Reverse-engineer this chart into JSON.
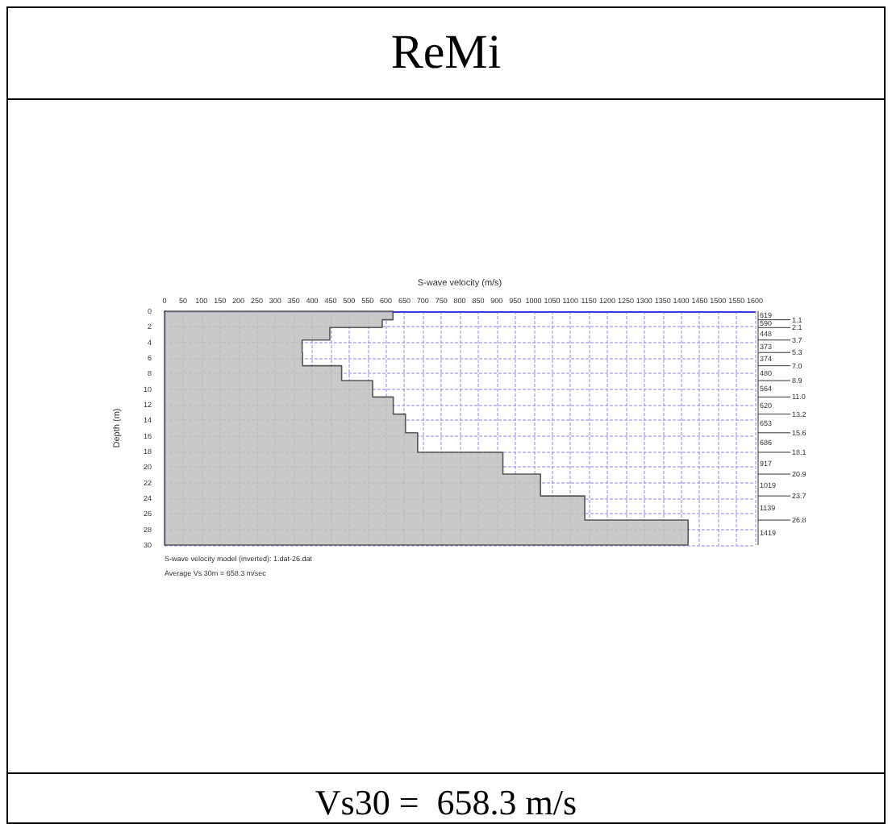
{
  "chart_data": {
    "type": "area",
    "orientation": "horizontal",
    "title": "ReMi",
    "xlabel": "S-wave velocity (m/s)",
    "ylabel": "Depth (m)",
    "x": [
      0,
      1.1,
      1.1,
      2.1,
      2.1,
      3.7,
      3.7,
      5.3,
      5.3,
      7.0,
      7.0,
      8.9,
      8.9,
      11.0,
      11.0,
      13.2,
      13.2,
      15.6,
      15.6,
      18.1,
      18.1,
      20.9,
      20.9,
      23.7,
      23.7,
      26.8,
      26.8,
      30
    ],
    "series": [
      {
        "color": "#c0c0c0",
        "values": [
          619,
          619,
          590,
          590,
          448,
          448,
          373,
          373,
          374,
          374,
          480,
          480,
          564,
          564,
          620,
          620,
          653,
          653,
          686,
          686,
          917,
          917,
          1019,
          1019,
          1139,
          1139,
          1419,
          1419
        ],
        "name": null
      }
    ],
    "xlim": [
      0,
      1600
    ],
    "xticks": [
      0,
      50,
      100,
      150,
      200,
      250,
      300,
      350,
      400,
      450,
      500,
      550,
      600,
      650,
      700,
      750,
      800,
      850,
      900,
      950,
      1000,
      1050,
      1100,
      1150,
      1200,
      1250,
      1300,
      1350,
      1400,
      1450,
      1500,
      1550,
      1600
    ],
    "ylim": [
      30,
      0
    ],
    "yticks": [
      0,
      2,
      4,
      6,
      8,
      10,
      12,
      14,
      16,
      18,
      20,
      22,
      24,
      26,
      28,
      30
    ],
    "grid": true,
    "annotations": [
      "S-wave velocity model (inverted): 1.dat-26.dat",
      "Average Vs 30m = 658.3 m/sec",
      "Vs30 =  658.3 m/s",
      "619",
      "590",
      "448",
      "373",
      "374",
      "480",
      "564",
      "620",
      "653",
      "686",
      "917",
      "1019",
      "1139",
      "1419",
      "1.1",
      "2.1",
      "3.7",
      "5.3",
      "7.0",
      "8.9",
      "11.0",
      "13.2",
      "15.6",
      "18.1",
      "20.9",
      "23.7",
      "26.8"
    ]
  }
}
